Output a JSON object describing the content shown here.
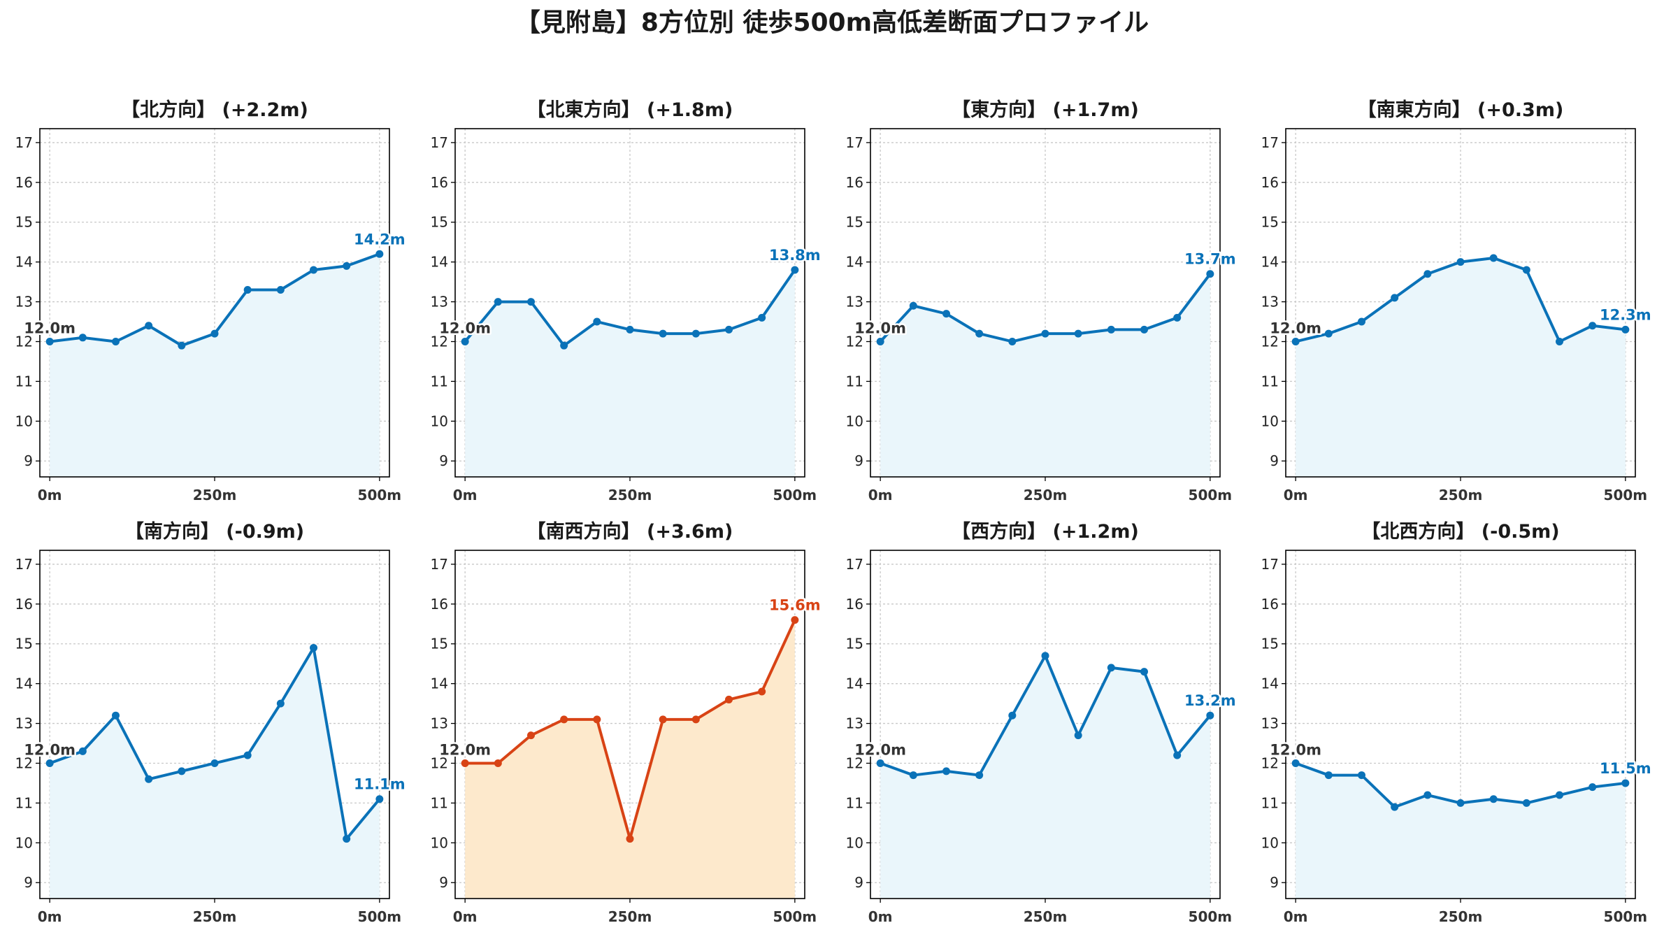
{
  "figure": {
    "title": "【見附島】8方位別 徒歩500m高低差断面プロファイル"
  },
  "colors": {
    "normal_line": "#0a72b8",
    "normal_fill": "#eaf6fb",
    "highlight_line": "#d84315",
    "highlight_fill": "#fde9cc",
    "start_label": "#333333",
    "grid": "#c8c8c8"
  },
  "chart_data": [
    {
      "type": "line",
      "title": "【北方向】 (+2.2m)",
      "start_label": "12.0m",
      "end_label": "14.2m",
      "highlight": false,
      "x": [
        0,
        50,
        100,
        150,
        200,
        250,
        300,
        350,
        400,
        450,
        500
      ],
      "y": [
        12.0,
        12.1,
        12.0,
        12.4,
        11.9,
        12.2,
        13.3,
        13.3,
        13.8,
        13.9,
        14.2
      ],
      "xticks": [
        "0m",
        "250m",
        "500m"
      ],
      "yticks": [
        9,
        10,
        11,
        12,
        13,
        14,
        15,
        16,
        17
      ],
      "xlim": [
        -15,
        515
      ],
      "ylim": [
        8.6,
        17.35
      ],
      "grid": true
    },
    {
      "type": "line",
      "title": "【北東方向】 (+1.8m)",
      "start_label": "12.0m",
      "end_label": "13.8m",
      "highlight": false,
      "x": [
        0,
        50,
        100,
        150,
        200,
        250,
        300,
        350,
        400,
        450,
        500
      ],
      "y": [
        12.0,
        13.0,
        13.0,
        11.9,
        12.5,
        12.3,
        12.2,
        12.2,
        12.3,
        12.6,
        13.8
      ],
      "xticks": [
        "0m",
        "250m",
        "500m"
      ],
      "yticks": [
        9,
        10,
        11,
        12,
        13,
        14,
        15,
        16,
        17
      ],
      "xlim": [
        -15,
        515
      ],
      "ylim": [
        8.6,
        17.35
      ],
      "grid": true
    },
    {
      "type": "line",
      "title": "【東方向】 (+1.7m)",
      "start_label": "12.0m",
      "end_label": "13.7m",
      "highlight": false,
      "x": [
        0,
        50,
        100,
        150,
        200,
        250,
        300,
        350,
        400,
        450,
        500
      ],
      "y": [
        12.0,
        12.9,
        12.7,
        12.2,
        12.0,
        12.2,
        12.2,
        12.3,
        12.3,
        12.6,
        13.7
      ],
      "xticks": [
        "0m",
        "250m",
        "500m"
      ],
      "yticks": [
        9,
        10,
        11,
        12,
        13,
        14,
        15,
        16,
        17
      ],
      "xlim": [
        -15,
        515
      ],
      "ylim": [
        8.6,
        17.35
      ],
      "grid": true
    },
    {
      "type": "line",
      "title": "【南東方向】 (+0.3m)",
      "start_label": "12.0m",
      "end_label": "12.3m",
      "highlight": false,
      "x": [
        0,
        50,
        100,
        150,
        200,
        250,
        300,
        350,
        400,
        450,
        500
      ],
      "y": [
        12.0,
        12.2,
        12.5,
        13.1,
        13.7,
        14.0,
        14.1,
        13.8,
        12.0,
        12.4,
        12.3
      ],
      "xticks": [
        "0m",
        "250m",
        "500m"
      ],
      "yticks": [
        9,
        10,
        11,
        12,
        13,
        14,
        15,
        16,
        17
      ],
      "xlim": [
        -15,
        515
      ],
      "ylim": [
        8.6,
        17.35
      ],
      "grid": true
    },
    {
      "type": "line",
      "title": "【南方向】 (-0.9m)",
      "start_label": "12.0m",
      "end_label": "11.1m",
      "highlight": false,
      "x": [
        0,
        50,
        100,
        150,
        200,
        250,
        300,
        350,
        400,
        450,
        500
      ],
      "y": [
        12.0,
        12.3,
        13.2,
        11.6,
        11.8,
        12.0,
        12.2,
        13.5,
        14.9,
        10.1,
        11.1
      ],
      "xticks": [
        "0m",
        "250m",
        "500m"
      ],
      "yticks": [
        9,
        10,
        11,
        12,
        13,
        14,
        15,
        16,
        17
      ],
      "xlim": [
        -15,
        515
      ],
      "ylim": [
        8.6,
        17.35
      ],
      "grid": true
    },
    {
      "type": "line",
      "title": "【南西方向】 (+3.6m)",
      "start_label": "12.0m",
      "end_label": "15.6m",
      "highlight": true,
      "x": [
        0,
        50,
        100,
        150,
        200,
        250,
        300,
        350,
        400,
        450,
        500
      ],
      "y": [
        12.0,
        12.0,
        12.7,
        13.1,
        13.1,
        10.1,
        13.1,
        13.1,
        13.6,
        13.8,
        15.6
      ],
      "xticks": [
        "0m",
        "250m",
        "500m"
      ],
      "yticks": [
        9,
        10,
        11,
        12,
        13,
        14,
        15,
        16,
        17
      ],
      "xlim": [
        -15,
        515
      ],
      "ylim": [
        8.6,
        17.35
      ],
      "grid": true
    },
    {
      "type": "line",
      "title": "【西方向】 (+1.2m)",
      "start_label": "12.0m",
      "end_label": "13.2m",
      "highlight": false,
      "x": [
        0,
        50,
        100,
        150,
        200,
        250,
        300,
        350,
        400,
        450,
        500
      ],
      "y": [
        12.0,
        11.7,
        11.8,
        11.7,
        13.2,
        14.7,
        12.7,
        14.4,
        14.3,
        12.2,
        13.2
      ],
      "xticks": [
        "0m",
        "250m",
        "500m"
      ],
      "yticks": [
        9,
        10,
        11,
        12,
        13,
        14,
        15,
        16,
        17
      ],
      "xlim": [
        -15,
        515
      ],
      "ylim": [
        8.6,
        17.35
      ],
      "grid": true
    },
    {
      "type": "line",
      "title": "【北西方向】 (-0.5m)",
      "start_label": "12.0m",
      "end_label": "11.5m",
      "highlight": false,
      "x": [
        0,
        50,
        100,
        150,
        200,
        250,
        300,
        350,
        400,
        450,
        500
      ],
      "y": [
        12.0,
        11.7,
        11.7,
        10.9,
        11.2,
        11.0,
        11.1,
        11.0,
        11.2,
        11.4,
        11.5
      ],
      "xticks": [
        "0m",
        "250m",
        "500m"
      ],
      "yticks": [
        9,
        10,
        11,
        12,
        13,
        14,
        15,
        16,
        17
      ],
      "xlim": [
        -15,
        515
      ],
      "ylim": [
        8.6,
        17.35
      ],
      "grid": true
    }
  ]
}
